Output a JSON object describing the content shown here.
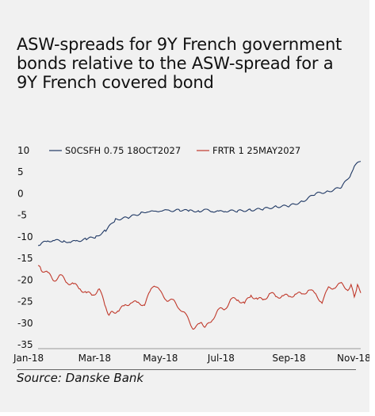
{
  "title": "ASW-spreads for 9Y French government bonds relative to the ASW-spread for a 9Y French covered bond",
  "source": "Source: Danske Bank",
  "colors": {
    "series1": "#1f3864",
    "series2": "#c0392b",
    "background": "#f1f1f1"
  },
  "chart_data": {
    "type": "line",
    "title": "ASW-spreads for 9Y French government bonds relative to the ASW-spread for a 9Y French covered bond",
    "xlabel": "",
    "ylabel": "",
    "ylim": [
      -35,
      10
    ],
    "yticks": [
      10,
      5,
      0,
      -5,
      -10,
      -15,
      -20,
      -25,
      -30,
      -35
    ],
    "xtick_labels": [
      "Jan-18",
      "Mar-18",
      "May-18",
      "Jul-18",
      "Sep-18",
      "Nov-18"
    ],
    "grid": false,
    "legend_position": "top",
    "series": [
      {
        "name": "S0CSFH 0.75 18OCT2027",
        "color": "#1f3864",
        "x": [
          0,
          1,
          3,
          5,
          8,
          10,
          12,
          15,
          18,
          21,
          24,
          28,
          32,
          34,
          36,
          38,
          40,
          44,
          47,
          50,
          52,
          54,
          56,
          58,
          62,
          66,
          70,
          74,
          78,
          82,
          86,
          90,
          94,
          97,
          98,
          100
        ],
        "values": [
          -12,
          -11.5,
          -11,
          -10.8,
          -11,
          -11.2,
          -11,
          -10.5,
          -10,
          -8.5,
          -6,
          -5.5,
          -4.5,
          -4,
          -4.3,
          -3.8,
          -4,
          -3.8,
          -4,
          -4,
          -3.8,
          -4,
          -4.2,
          -4,
          -4,
          -3.8,
          -3.5,
          -3,
          -2.8,
          -1.8,
          0,
          0.5,
          1.5,
          4.5,
          6.5,
          7.5
        ]
      },
      {
        "name": "FRTR 1 25MAY2027",
        "color": "#c0392b",
        "x": [
          0,
          1,
          3,
          5,
          7,
          9,
          11,
          13,
          15,
          17,
          19,
          21,
          22,
          23,
          25,
          27,
          29,
          31,
          33,
          35,
          36,
          38,
          40,
          42,
          44,
          46,
          48,
          50,
          51,
          52,
          54,
          56,
          58,
          60,
          62,
          64,
          66,
          68,
          70,
          72,
          74,
          76,
          78,
          80,
          82,
          84,
          86,
          88,
          90,
          92,
          94,
          96,
          97,
          98,
          99,
          100
        ],
        "values": [
          -17,
          -17.5,
          -18.5,
          -20,
          -19,
          -20.5,
          -21,
          -22,
          -23,
          -23.5,
          -22,
          -26.5,
          -28,
          -27.5,
          -27,
          -26,
          -25,
          -25.5,
          -25.5,
          -22.5,
          -21,
          -23,
          -24.5,
          -25,
          -26.5,
          -28.5,
          -31,
          -30.5,
          -30,
          -31,
          -29,
          -27,
          -26.5,
          -24.5,
          -24.5,
          -25.5,
          -23.5,
          -24.5,
          -24.5,
          -23,
          -24,
          -23.5,
          -24,
          -23,
          -23.5,
          -22,
          -23.5,
          -25,
          -22,
          -21.5,
          -21,
          -22,
          -21.5,
          -23.5,
          -21.5,
          -23
        ]
      }
    ]
  }
}
